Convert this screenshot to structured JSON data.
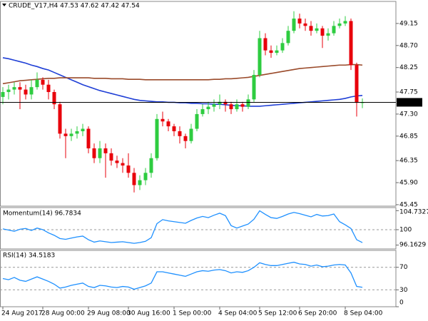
{
  "chart_data": [
    {
      "type": "candlestick",
      "title": "CRUDE_V17,H4 47.53 47.62 47.42 47.54",
      "up_color": "#2ecc40",
      "down_color": "#e8000b",
      "open": [
        47.65,
        47.75,
        47.8,
        47.85,
        47.8,
        47.7,
        47.85,
        48.0,
        47.9,
        47.75,
        47.5,
        46.9,
        46.85,
        46.9,
        46.95,
        47.0,
        46.6,
        46.4,
        46.6,
        46.5,
        46.35,
        46.3,
        46.25,
        46.1,
        45.85,
        45.95,
        46.1,
        46.4,
        47.2,
        47.15,
        47.05,
        46.95,
        46.85,
        46.75,
        47.0,
        47.3,
        47.4,
        47.45,
        47.5,
        47.55,
        47.5,
        47.4,
        47.5,
        47.45,
        47.6,
        48.1,
        48.85,
        48.6,
        48.55,
        48.6,
        48.75,
        49.0,
        49.25,
        49.15,
        49.1,
        49.0,
        49.05,
        48.9,
        48.95,
        49.1,
        49.15,
        49.2,
        48.3,
        47.53
      ],
      "high": [
        47.85,
        47.9,
        47.95,
        47.95,
        47.9,
        48.0,
        48.15,
        48.05,
        48.0,
        47.8,
        47.55,
        47.0,
        47.0,
        47.05,
        47.1,
        47.05,
        46.7,
        46.75,
        46.7,
        46.6,
        46.45,
        46.4,
        46.5,
        46.2,
        46.05,
        46.2,
        46.5,
        47.3,
        47.35,
        47.2,
        47.1,
        47.05,
        46.9,
        47.1,
        47.4,
        47.5,
        47.55,
        47.6,
        47.7,
        47.6,
        47.55,
        47.6,
        47.55,
        47.7,
        48.2,
        49.0,
        48.95,
        48.7,
        48.7,
        48.85,
        49.1,
        49.4,
        49.35,
        49.25,
        49.2,
        49.15,
        49.1,
        49.05,
        49.2,
        49.25,
        49.3,
        49.25,
        48.35,
        47.62
      ],
      "low": [
        47.5,
        47.6,
        47.7,
        47.4,
        47.6,
        47.6,
        47.8,
        47.8,
        47.6,
        47.4,
        46.8,
        46.4,
        46.75,
        46.8,
        46.85,
        46.5,
        46.3,
        46.3,
        46.0,
        46.25,
        46.2,
        46.1,
        46.0,
        45.7,
        45.75,
        45.85,
        46.0,
        46.35,
        47.05,
        46.95,
        46.85,
        46.7,
        46.6,
        46.7,
        46.95,
        47.25,
        47.3,
        47.35,
        47.4,
        47.35,
        47.3,
        47.35,
        47.35,
        47.4,
        47.55,
        48.05,
        48.5,
        48.45,
        48.5,
        48.55,
        48.7,
        48.95,
        49.05,
        49.0,
        48.9,
        48.95,
        48.65,
        48.8,
        48.9,
        49.05,
        49.1,
        48.2,
        47.25,
        47.42
      ],
      "close": [
        47.75,
        47.8,
        47.85,
        47.8,
        47.7,
        47.85,
        48.0,
        47.9,
        47.75,
        47.5,
        46.9,
        46.85,
        46.9,
        46.95,
        47.0,
        46.6,
        46.4,
        46.6,
        46.5,
        46.35,
        46.3,
        46.25,
        46.1,
        45.85,
        45.95,
        46.1,
        46.4,
        47.2,
        47.15,
        47.05,
        46.95,
        46.85,
        46.75,
        47.0,
        47.3,
        47.4,
        47.45,
        47.5,
        47.55,
        47.5,
        47.4,
        47.5,
        47.45,
        47.6,
        48.1,
        48.85,
        48.6,
        48.55,
        48.6,
        48.75,
        49.0,
        49.25,
        49.15,
        49.1,
        49.0,
        49.05,
        48.9,
        48.95,
        49.1,
        49.15,
        49.2,
        48.3,
        47.53,
        47.54
      ],
      "series": [
        {
          "color": "#1f3fd6",
          "values": [
            48.45,
            48.43,
            48.4,
            48.37,
            48.34,
            48.3,
            48.27,
            48.23,
            48.2,
            48.15,
            48.1,
            48.05,
            48.0,
            47.95,
            47.9,
            47.86,
            47.82,
            47.78,
            47.75,
            47.72,
            47.69,
            47.66,
            47.63,
            47.6,
            47.58,
            47.57,
            47.56,
            47.55,
            47.55,
            47.54,
            47.54,
            47.53,
            47.53,
            47.52,
            47.52,
            47.51,
            47.51,
            47.5,
            47.5,
            47.49,
            47.48,
            47.47,
            47.47,
            47.46,
            47.46,
            47.46,
            47.47,
            47.48,
            47.49,
            47.5,
            47.51,
            47.52,
            47.53,
            47.54,
            47.55,
            47.56,
            47.57,
            47.58,
            47.59,
            47.6,
            47.62,
            47.65,
            47.67,
            47.68
          ]
        },
        {
          "color": "#9a4a2a",
          "values": [
            47.92,
            47.94,
            47.96,
            47.98,
            47.99,
            48.0,
            48.01,
            48.02,
            48.03,
            48.03,
            48.04,
            48.04,
            48.04,
            48.04,
            48.04,
            48.04,
            48.03,
            48.03,
            48.03,
            48.02,
            48.02,
            48.02,
            48.01,
            48.01,
            48.01,
            48.0,
            48.0,
            48.0,
            48.0,
            48.0,
            48.0,
            48.0,
            48.0,
            48.0,
            48.0,
            48.0,
            48.0,
            48.01,
            48.01,
            48.02,
            48.02,
            48.03,
            48.04,
            48.05,
            48.07,
            48.09,
            48.11,
            48.13,
            48.15,
            48.17,
            48.19,
            48.21,
            48.23,
            48.24,
            48.25,
            48.26,
            48.27,
            48.28,
            48.29,
            48.3,
            48.3,
            48.31,
            48.31,
            48.3
          ]
        }
      ],
      "ylim": [
        45.42,
        49.6
      ],
      "yticks": [
        49.15,
        {
          "value": 48.7,
          "label": "48.70"
        },
        48.25,
        47.75,
        {
          "value": 47.3,
          "label": "47.30"
        },
        46.85,
        46.35,
        {
          "value": 45.9,
          "label": "45.90"
        },
        45.45
      ]
    },
    {
      "type": "line",
      "title": "Momentum(14) 96.7834",
      "color": "#1e90ff",
      "values": [
        100.2,
        99.9,
        99.6,
        100.1,
        100.3,
        99.8,
        100.4,
        100.0,
        99.2,
        98.6,
        97.8,
        97.6,
        97.9,
        98.2,
        98.4,
        97.5,
        96.9,
        97.2,
        97.0,
        96.8,
        96.9,
        97.0,
        96.8,
        96.6,
        96.8,
        97.1,
        98.0,
        101.5,
        102.5,
        102.2,
        102.0,
        101.8,
        101.6,
        102.3,
        102.9,
        103.3,
        103.0,
        103.6,
        104.1,
        103.5,
        101.0,
        100.4,
        100.9,
        101.4,
        102.6,
        104.7,
        103.8,
        103.0,
        102.8,
        103.3,
        103.9,
        104.3,
        104.0,
        103.6,
        103.2,
        103.8,
        103.4,
        103.5,
        103.9,
        102.0,
        101.2,
        100.3,
        97.5,
        96.7834
      ],
      "ylim": [
        95.2,
        105.5
      ],
      "yticks": [
        100
      ],
      "max": 104.7327,
      "min": 96.1629
    },
    {
      "type": "line",
      "title": "RSI(14) 34.5183",
      "color": "#1e90ff",
      "values": [
        50,
        48,
        52,
        47,
        45,
        49,
        53,
        49,
        45,
        40,
        33,
        35,
        38,
        40,
        42,
        36,
        34,
        38,
        37,
        35,
        34,
        36,
        35,
        31,
        34,
        37,
        42,
        62,
        62,
        60,
        58,
        56,
        54,
        58,
        62,
        64,
        63,
        65,
        66,
        64,
        60,
        62,
        61,
        64,
        70,
        78,
        75,
        73,
        73,
        75,
        77,
        79,
        76,
        75,
        72,
        74,
        71,
        72,
        74,
        75,
        74,
        60,
        36,
        34.5183
      ],
      "ylim": [
        0,
        100
      ],
      "yticks": [
        70,
        30
      ],
      "min": 0,
      "xticks": [
        {
          "value": 0,
          "label": "24 Aug 2017"
        },
        {
          "value": 7,
          "label": "28 Aug 00:00"
        },
        {
          "value": 15,
          "label": "29 Aug 08:00"
        },
        {
          "value": 22,
          "label": "30 Aug 16:00"
        },
        {
          "value": 30,
          "label": "1 Sep 00:00"
        },
        {
          "value": 38,
          "label": "4 Sep 04:00"
        },
        {
          "value": 45,
          "label": "5 Sep 12:00"
        },
        {
          "value": 52,
          "label": "6 Sep 20:00"
        },
        {
          "value": 60,
          "label": "8 Sep 04:00"
        }
      ]
    }
  ]
}
